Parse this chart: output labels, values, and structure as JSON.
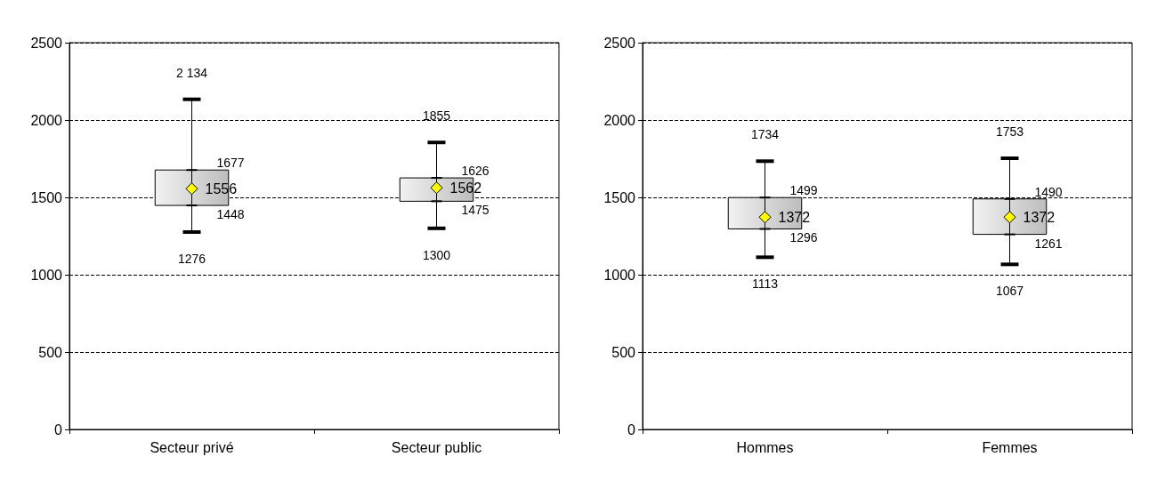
{
  "chart_data": [
    {
      "type": "box",
      "categories": [
        "Secteur privé",
        "Secteur public"
      ],
      "boxes": [
        {
          "low": 1276,
          "q1": 1448,
          "median": 1556,
          "q3": 1677,
          "high": 2134
        },
        {
          "low": 1300,
          "q1": 1475,
          "median": 1562,
          "q3": 1626,
          "high": 1855
        }
      ],
      "value_labels": [
        [
          "2 134",
          "1677",
          "1556",
          "1448",
          "1276"
        ],
        [
          "1855",
          "1626",
          "1562",
          "1475",
          "1300"
        ]
      ],
      "ylim": [
        0,
        2500
      ],
      "yticks": [
        0,
        500,
        1000,
        1500,
        2000,
        2500
      ],
      "grid": "y",
      "marker": "diamond"
    },
    {
      "type": "box",
      "categories": [
        "Hommes",
        "Femmes"
      ],
      "boxes": [
        {
          "low": 1113,
          "q1": 1296,
          "median": 1372,
          "q3": 1499,
          "high": 1734
        },
        {
          "low": 1067,
          "q1": 1261,
          "median": 1372,
          "q3": 1490,
          "high": 1753
        }
      ],
      "value_labels": [
        [
          "1734",
          "1499",
          "1372",
          "1296",
          "1113"
        ],
        [
          "1753",
          "1490",
          "1372",
          "1261",
          "1067"
        ]
      ],
      "ylim": [
        0,
        2500
      ],
      "yticks": [
        0,
        500,
        1000,
        1500,
        2000,
        2500
      ],
      "grid": "y",
      "marker": "diamond"
    }
  ]
}
